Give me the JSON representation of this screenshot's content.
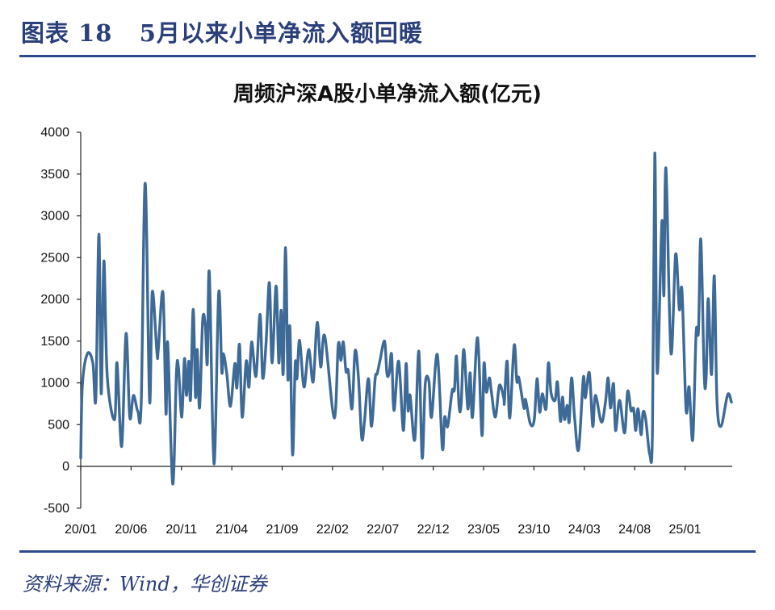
{
  "header": {
    "figure_title": "图表 18   5月以来小单净流入额回暖"
  },
  "footer": {
    "source": "资料来源：Wind，华创证券"
  },
  "colors": {
    "title": "#2b3f7a",
    "rule": "#2e4a8c",
    "line": "#3d6a96",
    "axis": "#222222"
  },
  "chart_data": {
    "type": "line",
    "title": "周频沪深A股小单净流入额(亿元)",
    "xlabel": "",
    "ylabel": "",
    "ylim": [
      -500,
      4000
    ],
    "yticks": [
      "4000",
      "3500",
      "3000",
      "2500",
      "2000",
      "1500",
      "1000",
      "500",
      "0",
      "-500"
    ],
    "xticks": [
      "20/01",
      "20/06",
      "20/11",
      "21/04",
      "21/09",
      "22/02",
      "22/07",
      "22/12",
      "23/05",
      "23/10",
      "24/03",
      "24/08",
      "25/01"
    ],
    "xlim": [
      "2020-01-01",
      "2025-05-20"
    ],
    "grid": false,
    "legend": "none",
    "series": [
      {
        "points": [
          [
            "2020-01-01",
            100
          ],
          [
            "2020-01-06",
            980
          ],
          [
            "2020-01-21",
            1350
          ],
          [
            "2020-02-07",
            1240
          ],
          [
            "2020-02-16",
            820
          ],
          [
            "2020-02-25",
            2780
          ],
          [
            "2020-03-02",
            870
          ],
          [
            "2020-03-10",
            2460
          ],
          [
            "2020-03-20",
            1070
          ],
          [
            "2020-04-12",
            560
          ],
          [
            "2020-04-19",
            1240
          ],
          [
            "2020-05-03",
            240
          ],
          [
            "2020-05-16",
            1590
          ],
          [
            "2020-05-27",
            590
          ],
          [
            "2020-06-08",
            850
          ],
          [
            "2020-06-21",
            660
          ],
          [
            "2020-07-01",
            750
          ],
          [
            "2020-07-13",
            3390
          ],
          [
            "2020-07-26",
            780
          ],
          [
            "2020-08-04",
            2090
          ],
          [
            "2020-08-18",
            1360
          ],
          [
            "2020-08-22",
            1400
          ],
          [
            "2020-09-06",
            2080
          ],
          [
            "2020-09-15",
            630
          ],
          [
            "2020-09-20",
            1480
          ],
          [
            "2020-10-05",
            -210
          ],
          [
            "2020-10-16",
            1110
          ],
          [
            "2020-10-22",
            1190
          ],
          [
            "2020-11-02",
            590
          ],
          [
            "2020-11-10",
            1290
          ],
          [
            "2020-11-16",
            850
          ],
          [
            "2020-11-23",
            1260
          ],
          [
            "2020-11-28",
            800
          ],
          [
            "2020-12-06",
            1880
          ],
          [
            "2020-12-13",
            830
          ],
          [
            "2020-12-18",
            1400
          ],
          [
            "2020-12-25",
            700
          ],
          [
            "2021-01-04",
            1740
          ],
          [
            "2021-01-12",
            1700
          ],
          [
            "2021-01-18",
            1230
          ],
          [
            "2021-01-24",
            2320
          ],
          [
            "2021-02-08",
            30
          ],
          [
            "2021-02-22",
            2080
          ],
          [
            "2021-03-01",
            1140
          ],
          [
            "2021-03-06",
            1350
          ],
          [
            "2021-03-16",
            1110
          ],
          [
            "2021-03-27",
            720
          ],
          [
            "2021-04-10",
            1230
          ],
          [
            "2021-04-16",
            940
          ],
          [
            "2021-04-24",
            1460
          ],
          [
            "2021-05-02",
            590
          ],
          [
            "2021-05-14",
            1260
          ],
          [
            "2021-05-22",
            950
          ],
          [
            "2021-05-30",
            1490
          ],
          [
            "2021-06-13",
            1080
          ],
          [
            "2021-06-25",
            1820
          ],
          [
            "2021-07-03",
            1060
          ],
          [
            "2021-07-13",
            1480
          ],
          [
            "2021-07-23",
            2200
          ],
          [
            "2021-08-01",
            1240
          ],
          [
            "2021-08-13",
            2160
          ],
          [
            "2021-08-21",
            1240
          ],
          [
            "2021-08-28",
            1870
          ],
          [
            "2021-09-04",
            1110
          ],
          [
            "2021-09-11",
            2620
          ],
          [
            "2021-09-18",
            1050
          ],
          [
            "2021-09-24",
            1670
          ],
          [
            "2021-10-02",
            140
          ],
          [
            "2021-10-10",
            1230
          ],
          [
            "2021-10-15",
            1050
          ],
          [
            "2021-10-23",
            1510
          ],
          [
            "2021-11-06",
            950
          ],
          [
            "2021-11-20",
            1400
          ],
          [
            "2021-12-03",
            1010
          ],
          [
            "2021-12-13",
            1640
          ],
          [
            "2021-12-18",
            1670
          ],
          [
            "2021-12-26",
            1190
          ],
          [
            "2022-01-08",
            1560
          ],
          [
            "2022-02-06",
            580
          ],
          [
            "2022-02-18",
            1460
          ],
          [
            "2022-02-26",
            1270
          ],
          [
            "2022-03-03",
            1490
          ],
          [
            "2022-03-11",
            1140
          ],
          [
            "2022-03-18",
            1140
          ],
          [
            "2022-03-29",
            690
          ],
          [
            "2022-04-08",
            1380
          ],
          [
            "2022-04-18",
            1080
          ],
          [
            "2022-04-28",
            340
          ],
          [
            "2022-05-06",
            530
          ],
          [
            "2022-05-18",
            1050
          ],
          [
            "2022-05-27",
            480
          ],
          [
            "2022-06-08",
            1050
          ],
          [
            "2022-06-14",
            1110
          ],
          [
            "2022-06-22",
            1260
          ],
          [
            "2022-07-06",
            1500
          ],
          [
            "2022-07-13",
            1110
          ],
          [
            "2022-07-20",
            1120
          ],
          [
            "2022-07-27",
            1340
          ],
          [
            "2022-08-04",
            670
          ],
          [
            "2022-08-18",
            1260
          ],
          [
            "2022-09-02",
            430
          ],
          [
            "2022-09-10",
            1230
          ],
          [
            "2022-09-16",
            670
          ],
          [
            "2022-09-22",
            850
          ],
          [
            "2022-10-06",
            320
          ],
          [
            "2022-10-18",
            1380
          ],
          [
            "2022-10-28",
            100
          ],
          [
            "2022-11-07",
            980
          ],
          [
            "2022-11-18",
            1020
          ],
          [
            "2022-11-26",
            590
          ],
          [
            "2022-12-13",
            1340
          ],
          [
            "2022-12-28",
            220
          ],
          [
            "2023-01-05",
            590
          ],
          [
            "2023-01-14",
            480
          ],
          [
            "2023-01-27",
            900
          ],
          [
            "2023-02-04",
            920
          ],
          [
            "2023-02-10",
            1320
          ],
          [
            "2023-02-18",
            720
          ],
          [
            "2023-02-24",
            740
          ],
          [
            "2023-03-02",
            1400
          ],
          [
            "2023-03-14",
            690
          ],
          [
            "2023-03-21",
            1120
          ],
          [
            "2023-03-28",
            590
          ],
          [
            "2023-04-13",
            1540
          ],
          [
            "2023-04-26",
            370
          ],
          [
            "2023-05-02",
            1230
          ],
          [
            "2023-05-09",
            890
          ],
          [
            "2023-05-18",
            1060
          ],
          [
            "2023-05-24",
            900
          ],
          [
            "2023-06-06",
            590
          ],
          [
            "2023-06-18",
            970
          ],
          [
            "2023-07-01",
            820
          ],
          [
            "2023-07-03",
            770
          ],
          [
            "2023-07-11",
            1260
          ],
          [
            "2023-07-19",
            580
          ],
          [
            "2023-08-02",
            1450
          ],
          [
            "2023-08-10",
            1020
          ],
          [
            "2023-08-16",
            1060
          ],
          [
            "2023-09-01",
            700
          ],
          [
            "2023-09-06",
            800
          ],
          [
            "2023-09-20",
            510
          ],
          [
            "2023-10-02",
            560
          ],
          [
            "2023-10-10",
            1050
          ],
          [
            "2023-10-18",
            650
          ],
          [
            "2023-10-26",
            870
          ],
          [
            "2023-11-07",
            690
          ],
          [
            "2023-11-14",
            1240
          ],
          [
            "2023-11-22",
            880
          ],
          [
            "2023-12-04",
            790
          ],
          [
            "2023-12-11",
            1010
          ],
          [
            "2023-12-20",
            540
          ],
          [
            "2023-12-26",
            830
          ],
          [
            "2024-01-02",
            560
          ],
          [
            "2024-01-10",
            730
          ],
          [
            "2024-01-16",
            530
          ],
          [
            "2024-01-23",
            1060
          ],
          [
            "2024-02-02",
            590
          ],
          [
            "2024-02-14",
            200
          ],
          [
            "2024-02-28",
            1060
          ],
          [
            "2024-03-04",
            820
          ],
          [
            "2024-03-16",
            1120
          ],
          [
            "2024-03-26",
            480
          ],
          [
            "2024-04-04",
            850
          ],
          [
            "2024-04-22",
            530
          ],
          [
            "2024-05-04",
            770
          ],
          [
            "2024-05-12",
            1060
          ],
          [
            "2024-05-19",
            700
          ],
          [
            "2024-05-28",
            990
          ],
          [
            "2024-06-04",
            430
          ],
          [
            "2024-06-16",
            790
          ],
          [
            "2024-07-01",
            400
          ],
          [
            "2024-07-10",
            900
          ],
          [
            "2024-07-20",
            670
          ],
          [
            "2024-07-28",
            690
          ],
          [
            "2024-08-04",
            430
          ],
          [
            "2024-08-11",
            690
          ],
          [
            "2024-08-20",
            380
          ],
          [
            "2024-08-26",
            650
          ],
          [
            "2024-09-04",
            560
          ],
          [
            "2024-09-16",
            140
          ],
          [
            "2024-09-24",
            420
          ],
          [
            "2024-10-01",
            3750
          ],
          [
            "2024-10-08",
            1120
          ],
          [
            "2024-10-22",
            2930
          ],
          [
            "2024-10-28",
            2050
          ],
          [
            "2024-11-04",
            3570
          ],
          [
            "2024-11-19",
            1360
          ],
          [
            "2024-12-03",
            2540
          ],
          [
            "2024-12-14",
            1880
          ],
          [
            "2024-12-22",
            2100
          ],
          [
            "2025-01-04",
            680
          ],
          [
            "2025-01-13",
            950
          ],
          [
            "2025-01-24",
            320
          ],
          [
            "2025-02-04",
            1600
          ],
          [
            "2025-02-11",
            1620
          ],
          [
            "2025-02-18",
            2720
          ],
          [
            "2025-02-28",
            1100
          ],
          [
            "2025-03-04",
            1080
          ],
          [
            "2025-03-10",
            2010
          ],
          [
            "2025-03-20",
            1100
          ],
          [
            "2025-03-28",
            2280
          ],
          [
            "2025-04-06",
            790
          ],
          [
            "2025-04-18",
            480
          ],
          [
            "2025-05-08",
            860
          ],
          [
            "2025-05-19",
            770
          ]
        ]
      }
    ]
  }
}
